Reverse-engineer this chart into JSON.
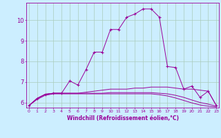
{
  "xlabel": "Windchill (Refroidissement éolien,°C)",
  "bg_color": "#cceeff",
  "line_color": "#990099",
  "grid_color": "#aaccbb",
  "x_ticks": [
    0,
    1,
    2,
    3,
    4,
    5,
    6,
    7,
    8,
    9,
    10,
    11,
    12,
    13,
    14,
    15,
    16,
    17,
    18,
    19,
    20,
    21,
    22,
    23
  ],
  "y_ticks": [
    6,
    7,
    8,
    9,
    10
  ],
  "xlim": [
    -0.3,
    23.3
  ],
  "ylim": [
    5.75,
    10.85
  ],
  "series": [
    {
      "x": [
        0,
        1,
        2,
        3,
        4,
        5,
        6,
        7,
        8,
        9,
        10,
        11,
        12,
        13,
        14,
        15,
        16,
        17,
        18,
        19,
        20,
        21,
        22,
        23
      ],
      "y": [
        5.85,
        6.2,
        6.4,
        6.45,
        6.45,
        7.05,
        6.85,
        7.6,
        8.45,
        8.45,
        9.55,
        9.55,
        10.15,
        10.3,
        10.55,
        10.55,
        10.15,
        7.75,
        7.7,
        6.65,
        6.8,
        6.25,
        6.55,
        5.85
      ],
      "marker": "+"
    },
    {
      "x": [
        0,
        1,
        2,
        3,
        4,
        5,
        6,
        7,
        8,
        9,
        10,
        11,
        12,
        13,
        14,
        15,
        16,
        17,
        18,
        19,
        20,
        21,
        22,
        23
      ],
      "y": [
        5.85,
        6.2,
        6.4,
        6.45,
        6.45,
        6.45,
        6.45,
        6.5,
        6.55,
        6.6,
        6.65,
        6.65,
        6.65,
        6.7,
        6.7,
        6.75,
        6.75,
        6.75,
        6.7,
        6.65,
        6.65,
        6.6,
        6.55,
        5.85
      ],
      "marker": null
    },
    {
      "x": [
        0,
        1,
        2,
        3,
        4,
        5,
        6,
        7,
        8,
        9,
        10,
        11,
        12,
        13,
        14,
        15,
        16,
        17,
        18,
        19,
        20,
        21,
        22,
        23
      ],
      "y": [
        5.85,
        6.2,
        6.4,
        6.45,
        6.45,
        6.45,
        6.45,
        6.45,
        6.45,
        6.45,
        6.48,
        6.48,
        6.48,
        6.48,
        6.48,
        6.48,
        6.45,
        6.42,
        6.35,
        6.25,
        6.12,
        6.0,
        5.92,
        5.82
      ],
      "marker": null
    },
    {
      "x": [
        0,
        1,
        2,
        3,
        4,
        5,
        6,
        7,
        8,
        9,
        10,
        11,
        12,
        13,
        14,
        15,
        16,
        17,
        18,
        19,
        20,
        21,
        22,
        23
      ],
      "y": [
        5.85,
        6.15,
        6.35,
        6.42,
        6.42,
        6.42,
        6.42,
        6.42,
        6.42,
        6.42,
        6.42,
        6.42,
        6.42,
        6.42,
        6.42,
        6.42,
        6.38,
        6.32,
        6.22,
        6.1,
        5.98,
        5.88,
        5.82,
        5.78
      ],
      "marker": null
    }
  ]
}
